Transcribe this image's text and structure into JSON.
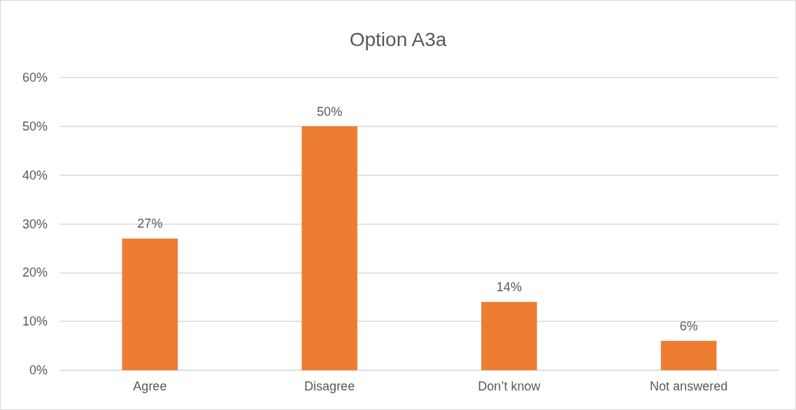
{
  "chart_data": {
    "type": "bar",
    "title": "Option A3a",
    "categories": [
      "Agree",
      "Disagree",
      "Don’t know",
      "Not answered"
    ],
    "values": [
      27,
      50,
      14,
      6
    ],
    "value_labels": [
      "27%",
      "50%",
      "14%",
      "6%"
    ],
    "color": "#ed7d31",
    "ylim": [
      0,
      60
    ],
    "yticks": [
      {
        "value": 0,
        "label": "0%"
      },
      {
        "value": 10,
        "label": "10%"
      },
      {
        "value": 20,
        "label": "20%"
      },
      {
        "value": 30,
        "label": "30%"
      },
      {
        "value": 40,
        "label": "40%"
      },
      {
        "value": 50,
        "label": "50%"
      },
      {
        "value": 60,
        "label": "60%"
      }
    ],
    "grid": true
  }
}
